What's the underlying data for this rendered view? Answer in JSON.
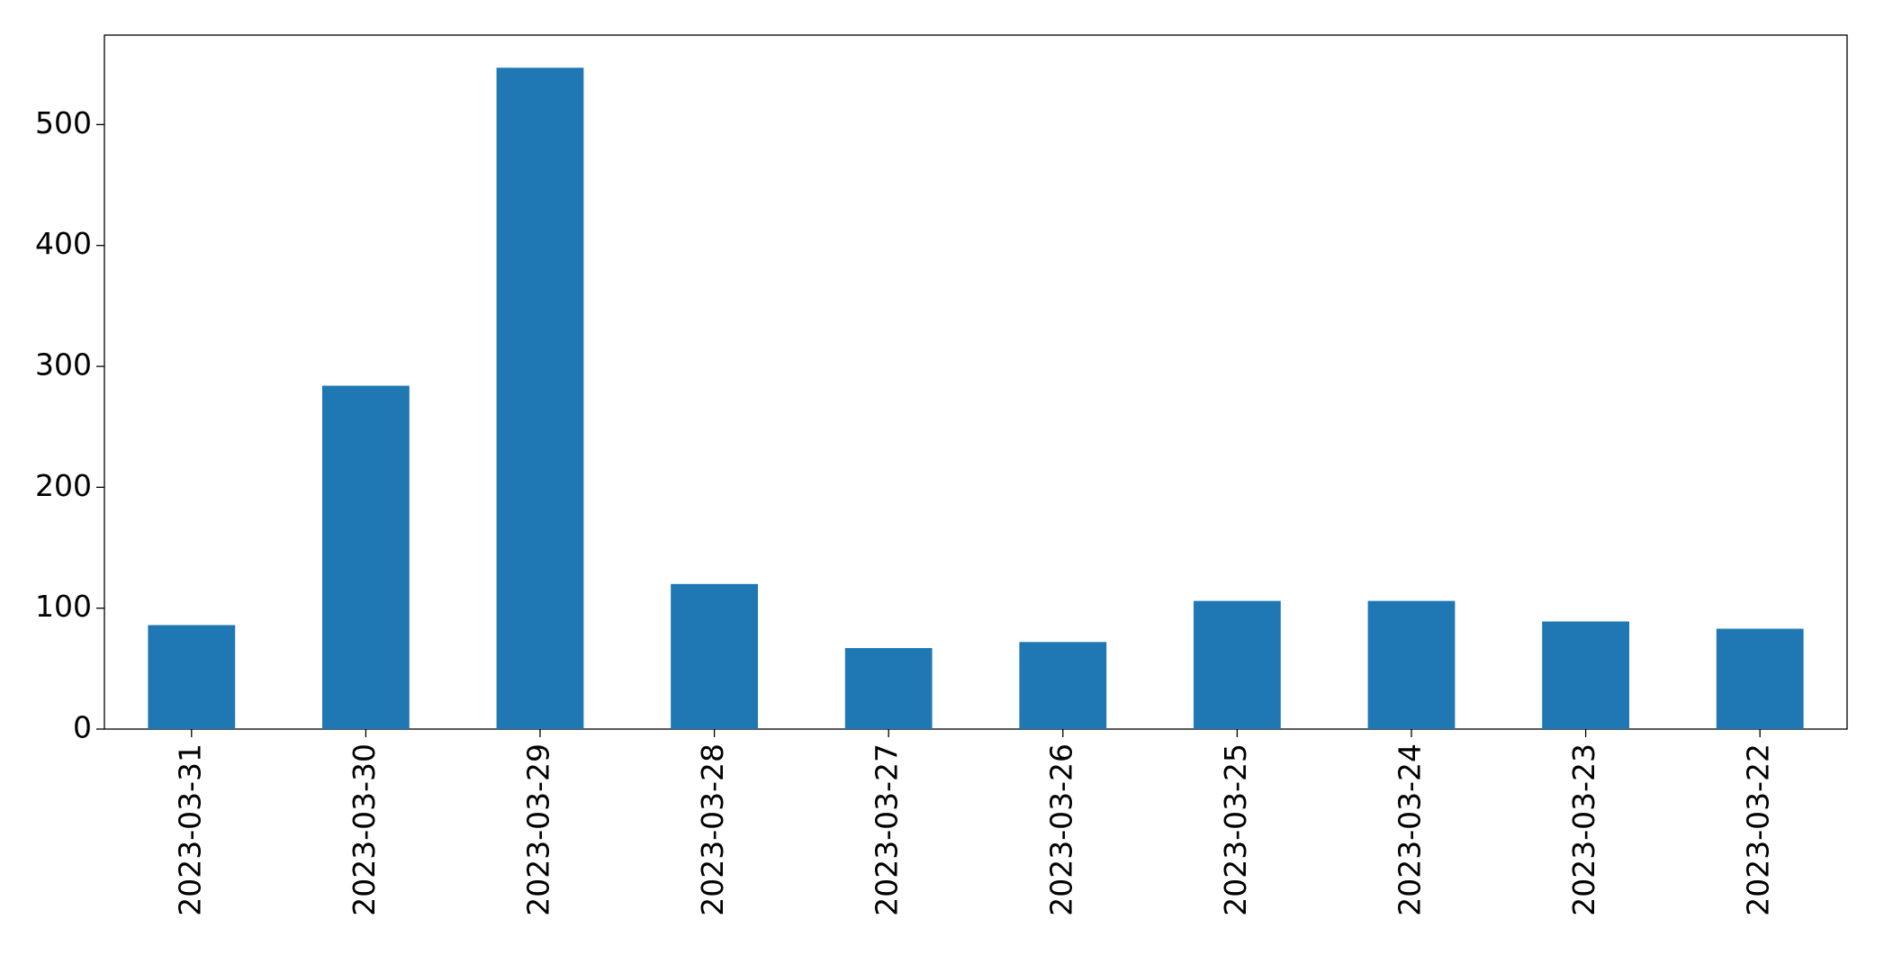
{
  "chart_data": {
    "type": "bar",
    "categories": [
      "2023-03-31",
      "2023-03-30",
      "2023-03-29",
      "2023-03-28",
      "2023-03-27",
      "2023-03-26",
      "2023-03-25",
      "2023-03-24",
      "2023-03-23",
      "2023-03-22"
    ],
    "values": [
      86,
      284,
      547,
      120,
      67,
      72,
      106,
      106,
      89,
      83
    ],
    "color": "#1f77b4",
    "ylim": [
      0,
      574
    ],
    "yticks": [
      0,
      100,
      200,
      300,
      400,
      500
    ],
    "grid": false
  }
}
